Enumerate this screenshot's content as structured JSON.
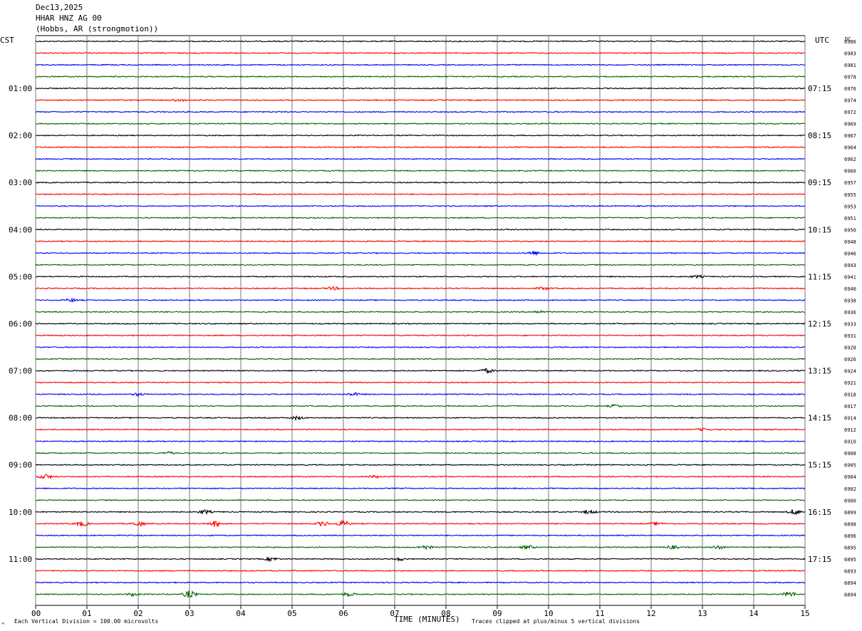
{
  "header": {
    "date": "Dec13,2025",
    "station": "HHAR HNZ AG 00",
    "location": "(Hobbs, AR (strongmotion))"
  },
  "left_axis_label": "CST",
  "right_axis_label": "UTC",
  "dc_label": "DC",
  "footer": {
    "scale_note": "Each Vertical Division =  100.00 microvolts",
    "clip_note": "Traces clipped at plus/minus 5 vertical divisions",
    "corner_mark": "^"
  },
  "chart_data": {
    "type": "line",
    "title": "Dec13,2025 HHAR HNZ AG 00 (Hobbs, AR (strongmotion))",
    "xlabel": "TIME (MINUTES)",
    "xlim": [
      0,
      15
    ],
    "x_ticks": [
      "00",
      "01",
      "02",
      "03",
      "04",
      "05",
      "06",
      "07",
      "08",
      "09",
      "10",
      "11",
      "12",
      "13",
      "14",
      "15"
    ],
    "grid": true,
    "trace_colors": [
      "#000000",
      "#ff0000",
      "#0000ff",
      "#006400"
    ],
    "left_time_labels": [
      "01:00",
      "02:00",
      "03:00",
      "04:00",
      "05:00",
      "06:00",
      "07:00",
      "08:00",
      "09:00",
      "10:00",
      "11:00"
    ],
    "right_time_labels": [
      "07:15",
      "08:15",
      "09:15",
      "10:15",
      "11:15",
      "12:15",
      "13:15",
      "14:15",
      "15:15",
      "16:15",
      "17:15"
    ],
    "time_label_first_row": 4,
    "time_label_every_rows": 4,
    "dc_values": [
      6986,
      6983,
      6981,
      6978,
      6976,
      6974,
      6972,
      6969,
      6967,
      6964,
      6962,
      6960,
      6957,
      6955,
      6953,
      6951,
      6950,
      6948,
      6946,
      6943,
      6941,
      6940,
      6938,
      6936,
      6933,
      6931,
      6928,
      6926,
      6924,
      6921,
      6918,
      6917,
      6914,
      6912,
      6910,
      6908,
      6905,
      6904,
      6902,
      6900,
      6899,
      6898,
      6896,
      6895,
      6895,
      6893,
      6894,
      6894
    ],
    "trace_count": 48,
    "amplitude_unit": "microvolts per vertical division",
    "amplitude_per_division": 100.0,
    "clip_divisions": 5,
    "events": [
      {
        "trace": 5,
        "minute": 2.8,
        "amp": 1.2
      },
      {
        "trace": 18,
        "minute": 9.7,
        "amp": 2.0
      },
      {
        "trace": 20,
        "minute": 12.9,
        "amp": 1.2
      },
      {
        "trace": 21,
        "minute": 5.8,
        "amp": 1.5
      },
      {
        "trace": 21,
        "minute": 9.9,
        "amp": 1.5
      },
      {
        "trace": 22,
        "minute": 0.7,
        "amp": 1.5
      },
      {
        "trace": 23,
        "minute": 9.8,
        "amp": 1.5
      },
      {
        "trace": 28,
        "minute": 8.8,
        "amp": 2.5
      },
      {
        "trace": 30,
        "minute": 2.0,
        "amp": 1.5
      },
      {
        "trace": 30,
        "minute": 6.2,
        "amp": 1.5
      },
      {
        "trace": 31,
        "minute": 11.3,
        "amp": 1.5
      },
      {
        "trace": 32,
        "minute": 5.1,
        "amp": 1.8
      },
      {
        "trace": 33,
        "minute": 13.0,
        "amp": 1.2
      },
      {
        "trace": 35,
        "minute": 2.6,
        "amp": 1.2
      },
      {
        "trace": 37,
        "minute": 0.2,
        "amp": 2.5
      },
      {
        "trace": 37,
        "minute": 6.6,
        "amp": 1.2
      },
      {
        "trace": 40,
        "minute": 3.3,
        "amp": 2.0
      },
      {
        "trace": 40,
        "minute": 10.8,
        "amp": 2.0
      },
      {
        "trace": 40,
        "minute": 14.8,
        "amp": 3.0
      },
      {
        "trace": 41,
        "minute": 0.9,
        "amp": 2.5
      },
      {
        "trace": 41,
        "minute": 2.0,
        "amp": 2.5
      },
      {
        "trace": 41,
        "minute": 3.5,
        "amp": 3.0
      },
      {
        "trace": 41,
        "minute": 5.6,
        "amp": 2.5
      },
      {
        "trace": 41,
        "minute": 6.0,
        "amp": 3.0
      },
      {
        "trace": 41,
        "minute": 12.1,
        "amp": 1.5
      },
      {
        "trace": 43,
        "minute": 7.6,
        "amp": 2.0
      },
      {
        "trace": 43,
        "minute": 9.6,
        "amp": 2.0
      },
      {
        "trace": 43,
        "minute": 12.4,
        "amp": 2.0
      },
      {
        "trace": 43,
        "minute": 13.3,
        "amp": 2.0
      },
      {
        "trace": 44,
        "minute": 4.6,
        "amp": 1.8
      },
      {
        "trace": 44,
        "minute": 7.1,
        "amp": 1.5
      },
      {
        "trace": 47,
        "minute": 1.9,
        "amp": 1.5
      },
      {
        "trace": 47,
        "minute": 3.0,
        "amp": 4.0
      },
      {
        "trace": 47,
        "minute": 6.1,
        "amp": 2.0
      },
      {
        "trace": 47,
        "minute": 14.7,
        "amp": 3.0
      }
    ]
  }
}
